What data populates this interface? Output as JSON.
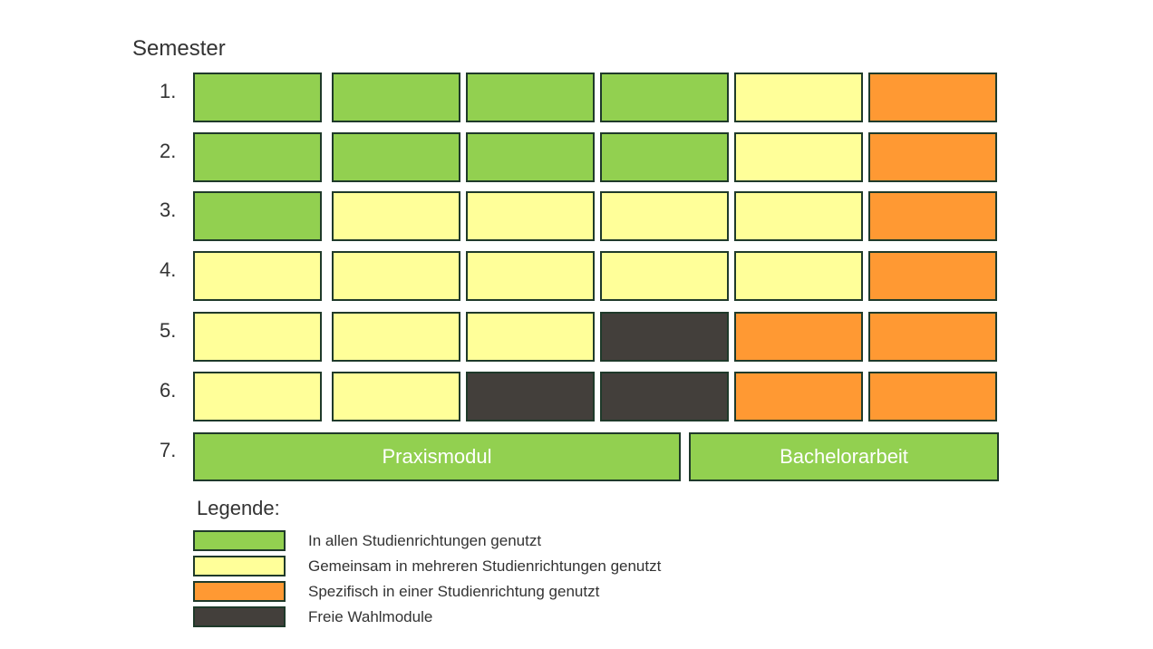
{
  "title": "Semester",
  "colors": {
    "all": "#92d050",
    "shared": "#ffff99",
    "specific": "#ff9933",
    "elective": "#433f3b"
  },
  "rows": [
    {
      "label": "1.",
      "cells": [
        "all",
        "all",
        "all",
        "all",
        "shared",
        "specific"
      ]
    },
    {
      "label": "2.",
      "cells": [
        "all",
        "all",
        "all",
        "all",
        "shared",
        "specific"
      ]
    },
    {
      "label": "3.",
      "cells": [
        "all",
        "shared",
        "shared",
        "shared",
        "shared",
        "specific"
      ]
    },
    {
      "label": "4.",
      "cells": [
        "shared",
        "shared",
        "shared",
        "shared",
        "shared",
        "specific"
      ]
    },
    {
      "label": "5.",
      "cells": [
        "shared",
        "shared",
        "shared",
        "elective",
        "specific",
        "specific"
      ]
    },
    {
      "label": "6.",
      "cells": [
        "shared",
        "shared",
        "elective",
        "elective",
        "specific",
        "specific"
      ]
    }
  ],
  "row7": {
    "label": "7.",
    "praxis": "Praxismodul",
    "bachelor": "Bachelorarbeit",
    "type": "all"
  },
  "legend": {
    "title": "Legende:",
    "items": [
      {
        "type": "all",
        "label": "In allen Studienrichtungen genutzt"
      },
      {
        "type": "shared",
        "label": "Gemeinsam in mehreren Studienrichtungen genutzt"
      },
      {
        "type": "specific",
        "label": "Spezifisch in einer Studienrichtung genutzt"
      },
      {
        "type": "elective",
        "label": "Freie Wahlmodule"
      }
    ]
  }
}
